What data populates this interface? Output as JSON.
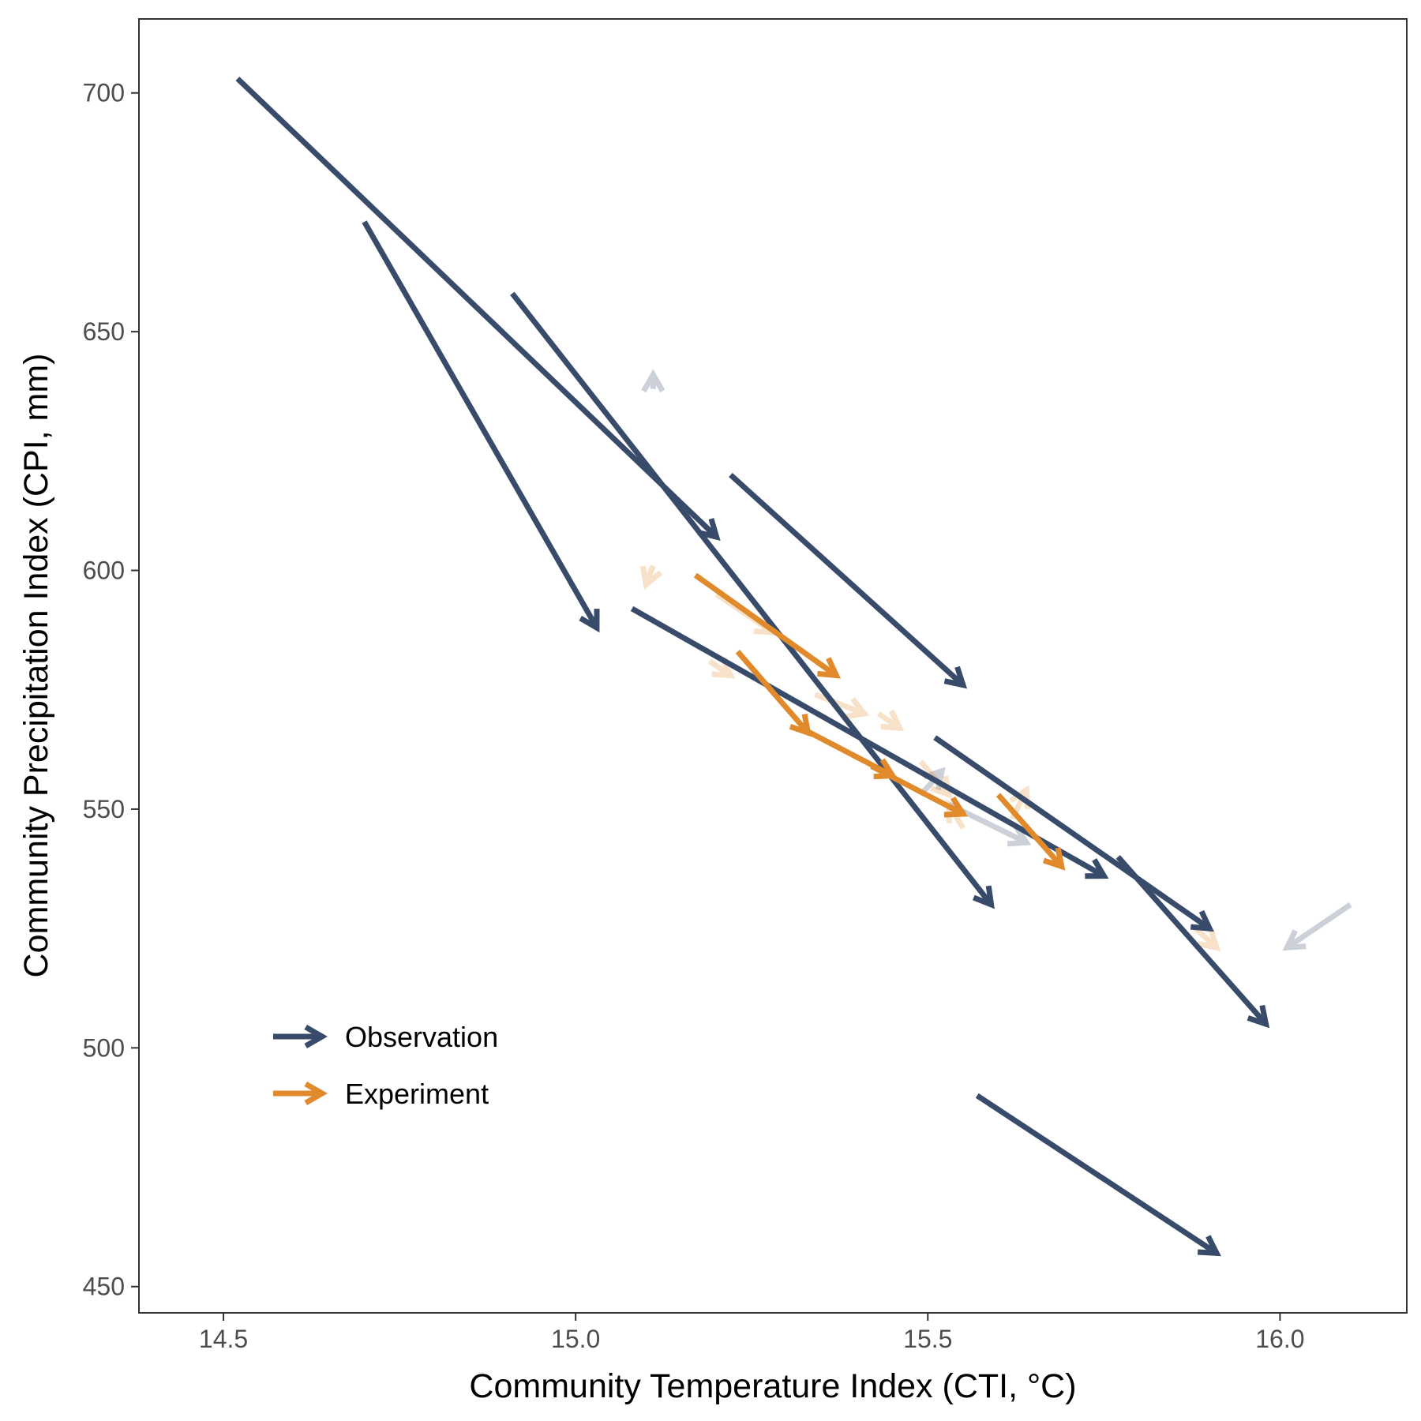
{
  "chart_data": {
    "type": "arrow-scatter",
    "xlabel": "Community Temperature Index (CTI, °C)",
    "ylabel": "Community Precipitation Index (CPI, mm)",
    "xlim": [
      14.38,
      16.18
    ],
    "ylim": [
      444.5,
      715.5
    ],
    "x_ticks": [
      14.5,
      15.0,
      15.5,
      16.0
    ],
    "x_tick_labels": [
      "14.5",
      "15.0",
      "15.5",
      "16.0"
    ],
    "y_ticks": [
      450,
      500,
      550,
      600,
      650,
      700
    ],
    "y_tick_labels": [
      "450",
      "500",
      "550",
      "600",
      "650",
      "700"
    ],
    "grid": false,
    "legend_position": "bottom-left",
    "colors": {
      "Observation": "#394B6A",
      "Experiment": "#E08A2C"
    },
    "series": [
      {
        "name": "Observation",
        "color": "#394B6A",
        "arrows": [
          {
            "x0": 14.52,
            "y0": 703,
            "x1": 15.2,
            "y1": 607,
            "alpha": 1
          },
          {
            "x0": 14.7,
            "y0": 673,
            "x1": 15.03,
            "y1": 588,
            "alpha": 1
          },
          {
            "x0": 14.91,
            "y0": 658,
            "x1": 15.59,
            "y1": 530,
            "alpha": 1
          },
          {
            "x0": 15.22,
            "y0": 620,
            "x1": 15.55,
            "y1": 576,
            "alpha": 1
          },
          {
            "x0": 15.08,
            "y0": 592,
            "x1": 15.75,
            "y1": 536,
            "alpha": 1
          },
          {
            "x0": 15.51,
            "y0": 565,
            "x1": 15.9,
            "y1": 525,
            "alpha": 1
          },
          {
            "x0": 15.77,
            "y0": 540,
            "x1": 15.98,
            "y1": 505,
            "alpha": 1
          },
          {
            "x0": 15.57,
            "y0": 490,
            "x1": 15.91,
            "y1": 457,
            "alpha": 1
          },
          {
            "x0": 15.11,
            "y0": 638,
            "x1": 15.11,
            "y1": 641,
            "alpha": 0.25
          },
          {
            "x0": 15.49,
            "y0": 553,
            "x1": 15.52,
            "y1": 558,
            "alpha": 0.25
          },
          {
            "x0": 15.53,
            "y0": 551,
            "x1": 15.64,
            "y1": 543,
            "alpha": 0.25
          },
          {
            "x0": 16.1,
            "y0": 530,
            "x1": 16.01,
            "y1": 521,
            "alpha": 0.25
          }
        ]
      },
      {
        "name": "Experiment",
        "color": "#E08A2C",
        "arrows": [
          {
            "x0": 15.17,
            "y0": 599,
            "x1": 15.37,
            "y1": 578,
            "alpha": 1
          },
          {
            "x0": 15.23,
            "y0": 583,
            "x1": 15.33,
            "y1": 566,
            "alpha": 1
          },
          {
            "x0": 15.32,
            "y0": 567,
            "x1": 15.45,
            "y1": 557,
            "alpha": 1
          },
          {
            "x0": 15.42,
            "y0": 559,
            "x1": 15.55,
            "y1": 549,
            "alpha": 1
          },
          {
            "x0": 15.6,
            "y0": 553,
            "x1": 15.69,
            "y1": 538,
            "alpha": 1
          },
          {
            "x0": 15.11,
            "y0": 601,
            "x1": 15.1,
            "y1": 597,
            "alpha": 0.25
          },
          {
            "x0": 15.2,
            "y0": 595,
            "x1": 15.28,
            "y1": 587,
            "alpha": 0.25
          },
          {
            "x0": 15.19,
            "y0": 581,
            "x1": 15.22,
            "y1": 578,
            "alpha": 0.25
          },
          {
            "x0": 15.34,
            "y0": 574,
            "x1": 15.41,
            "y1": 570,
            "alpha": 0.25
          },
          {
            "x0": 15.43,
            "y0": 570,
            "x1": 15.46,
            "y1": 567,
            "alpha": 0.25
          },
          {
            "x0": 15.49,
            "y0": 560,
            "x1": 15.53,
            "y1": 553,
            "alpha": 0.25
          },
          {
            "x0": 15.55,
            "y0": 546,
            "x1": 15.53,
            "y1": 551,
            "alpha": 0.25
          },
          {
            "x0": 15.62,
            "y0": 548,
            "x1": 15.64,
            "y1": 554,
            "alpha": 0.25
          },
          {
            "x0": 15.88,
            "y0": 525,
            "x1": 15.91,
            "y1": 521,
            "alpha": 0.25
          }
        ]
      }
    ]
  },
  "legend": {
    "items": [
      {
        "label": "Observation",
        "color": "#394B6A"
      },
      {
        "label": "Experiment",
        "color": "#E08A2C"
      }
    ]
  }
}
